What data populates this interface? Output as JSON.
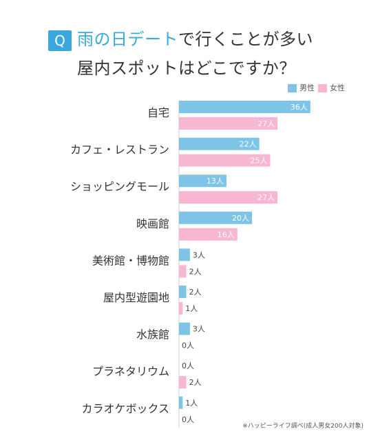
{
  "header": {
    "badge": "Q",
    "title_highlight": "雨の日デート",
    "title_rest_line1": "で行くことが多い",
    "title_line2": "屋内スポットはどこですか？"
  },
  "legend": {
    "male": "男性",
    "female": "女性"
  },
  "colors": {
    "male": "#7ec4e6",
    "female": "#f7b7d2",
    "accent": "#3aa8dc"
  },
  "chart_data": {
    "type": "bar",
    "orientation": "horizontal",
    "categories": [
      "自宅",
      "カフェ・レストラン",
      "ショッピングモール",
      "映画館",
      "美術館・博物館",
      "屋内型遊園地",
      "水族館",
      "プラネタリウム",
      "カラオケボックス"
    ],
    "series": [
      {
        "name": "男性",
        "values": [
          36,
          22,
          13,
          20,
          3,
          2,
          3,
          0,
          1
        ],
        "labels": [
          "36人",
          "22人",
          "13人",
          "20人",
          "3人",
          "2人",
          "3人",
          "0人",
          "1人"
        ]
      },
      {
        "name": "女性",
        "values": [
          27,
          25,
          27,
          16,
          2,
          1,
          0,
          2,
          0
        ],
        "labels": [
          "27人",
          "25人",
          "27人",
          "16人",
          "2人",
          "1人",
          "0人",
          "2人",
          "0人"
        ]
      }
    ],
    "legend_position": "top-right",
    "grid": false
  },
  "footnote": "※ハッピーライフ調べ(成人男女200人対象)"
}
